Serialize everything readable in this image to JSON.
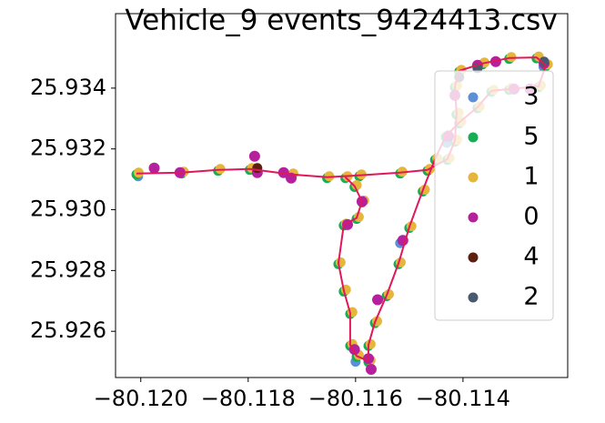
{
  "chart_data": {
    "type": "scatter",
    "title": "Vehicle_9 events_9424413.csv",
    "xlim": [
      -80.12047,
      -80.11205
    ],
    "ylim": [
      25.92448,
      25.93645
    ],
    "xticks": [
      {
        "value": -80.12,
        "label": "−80.120"
      },
      {
        "value": -80.118,
        "label": "−80.118"
      },
      {
        "value": -80.116,
        "label": "−80.116"
      },
      {
        "value": -80.114,
        "label": "−80.114"
      }
    ],
    "yticks": [
      25.926,
      25.928,
      {
        "value": 25.93,
        "label": "25.930"
      },
      25.932,
      25.934
    ],
    "legend": "center right",
    "route": {
      "color": "#e0185a",
      "x": [
        -80.12008,
        -80.11924,
        -80.11856,
        -80.11797,
        -80.1172,
        -80.11653,
        -80.11593,
        -80.11517,
        -80.11466,
        -80.11429,
        -80.11415,
        -80.11412,
        -80.11415,
        -80.11407,
        -80.11364,
        -80.11314,
        -80.11263,
        -80.11246,
        -80.11259,
        -80.11314,
        -80.11347,
        -80.11373,
        -80.11407,
        -80.11432,
        -80.11452,
        -80.11475,
        -80.115,
        -80.1152,
        -80.11542,
        -80.11564,
        -80.11576,
        -80.11576,
        -80.11598,
        -80.1161,
        -80.1161,
        -80.11622,
        -80.11632,
        -80.11622,
        -80.11598,
        -80.11588,
        -80.11602,
        -80.11619
      ],
      "values": [
        25.93119,
        25.93122,
        25.93131,
        25.93134,
        25.93116,
        25.93107,
        25.93113,
        25.93122,
        25.93131,
        25.93167,
        25.93227,
        25.93316,
        25.93406,
        25.93457,
        25.93481,
        25.93499,
        25.93501,
        25.93475,
        25.93406,
        25.93397,
        25.93391,
        25.93337,
        25.93287,
        25.93242,
        25.93167,
        25.93063,
        25.92943,
        25.92824,
        25.92719,
        25.9263,
        25.92555,
        25.92502,
        25.92519,
        25.92555,
        25.9266,
        25.92734,
        25.92824,
        25.92951,
        25.92973,
        25.93027,
        25.93078,
        25.93107
      ]
    },
    "series": [
      {
        "name": "3",
        "color": "#5b8fd6",
        "x": [
          -80.116,
          -80.12005,
          -80.1143,
          -80.1125,
          -80.11517
        ],
        "values": [
          25.925,
          25.9311,
          25.9322,
          25.9347,
          25.9289
        ]
      },
      {
        "name": "5",
        "color": "#17ad55",
        "x": [
          -80.12008,
          -80.11924,
          -80.11856,
          -80.11797,
          -80.1172,
          -80.11653,
          -80.11593,
          -80.11517,
          -80.11466,
          -80.11429,
          -80.11415,
          -80.11412,
          -80.11415,
          -80.11407,
          -80.11364,
          -80.11314,
          -80.11263,
          -80.11246,
          -80.11259,
          -80.11314,
          -80.11347,
          -80.11373,
          -80.11407,
          -80.11432,
          -80.11452,
          -80.11475,
          -80.115,
          -80.1152,
          -80.11542,
          -80.11564,
          -80.11576,
          -80.11576,
          -80.11598,
          -80.1161,
          -80.1161,
          -80.11622,
          -80.11632,
          -80.11622,
          -80.11598,
          -80.11588,
          -80.11602,
          -80.11619
        ],
        "values": [
          25.93116,
          25.93119,
          25.93128,
          25.93131,
          25.93113,
          25.93104,
          25.9311,
          25.93119,
          25.93128,
          25.93164,
          25.93224,
          25.93313,
          25.93403,
          25.93454,
          25.93478,
          25.93496,
          25.93498,
          25.93472,
          25.93403,
          25.93394,
          25.93388,
          25.93334,
          25.93284,
          25.93239,
          25.93164,
          25.9306,
          25.9294,
          25.92821,
          25.92716,
          25.92627,
          25.92552,
          25.92499,
          25.92516,
          25.92552,
          25.92657,
          25.92731,
          25.92821,
          25.92948,
          25.9297,
          25.93024,
          25.93075,
          25.93104
        ]
      },
      {
        "name": "1",
        "color": "#e5b53c",
        "x": [
          -80.12004,
          -80.1192,
          -80.11852,
          -80.11793,
          -80.11716,
          -80.11649,
          -80.11589,
          -80.11513,
          -80.11462,
          -80.11425,
          -80.11411,
          -80.11408,
          -80.11411,
          -80.11403,
          -80.1136,
          -80.1131,
          -80.11259,
          -80.11242,
          -80.11255,
          -80.1131,
          -80.11343,
          -80.11369,
          -80.11403,
          -80.11428,
          -80.11448,
          -80.11471,
          -80.11496,
          -80.11516,
          -80.11538,
          -80.1156,
          -80.11572,
          -80.11572,
          -80.11594,
          -80.11606,
          -80.11606,
          -80.11618,
          -80.11628,
          -80.11618,
          -80.11594,
          -80.11584,
          -80.11598,
          -80.11615
        ],
        "values": [
          25.93122,
          25.93125,
          25.93134,
          25.93137,
          25.93119,
          25.9311,
          25.93116,
          25.93125,
          25.93134,
          25.9317,
          25.9323,
          25.93319,
          25.93409,
          25.9346,
          25.93484,
          25.93502,
          25.93504,
          25.93478,
          25.93409,
          25.934,
          25.93394,
          25.9334,
          25.9329,
          25.93245,
          25.9317,
          25.93066,
          25.92946,
          25.92827,
          25.92722,
          25.92633,
          25.92558,
          25.92505,
          25.92522,
          25.92558,
          25.92663,
          25.92737,
          25.92827,
          25.92954,
          25.92976,
          25.9303,
          25.93081,
          25.9311
        ]
      },
      {
        "name": "0",
        "color": "#b5209c",
        "x": [
          -80.11788,
          -80.11783,
          -80.11734,
          -80.11927,
          -80.11975,
          -80.1172,
          -80.11588,
          -80.11615,
          -80.11602,
          -80.11576,
          -80.11571,
          -80.11559,
          -80.11512,
          -80.11427,
          -80.11415,
          -80.11373,
          -80.11339,
          -80.11249,
          -80.11305,
          -80.11275
        ],
        "values": [
          25.93176,
          25.93122,
          25.93122,
          25.93122,
          25.93137,
          25.93104,
          25.93027,
          25.92951,
          25.9254,
          25.9251,
          25.92475,
          25.92704,
          25.92899,
          25.93242,
          25.93376,
          25.93475,
          25.93487,
          25.93481,
          25.93397,
          25.93397
        ]
      },
      {
        "name": "4",
        "color": "#5c2010",
        "x": [
          -80.11783
        ],
        "values": [
          25.93137
        ]
      },
      {
        "name": "2",
        "color": "#485a70",
        "x": [
          -80.11407,
          -80.11373,
          -80.11249
        ],
        "values": [
          25.93436,
          25.93466,
          25.93487
        ]
      }
    ]
  }
}
